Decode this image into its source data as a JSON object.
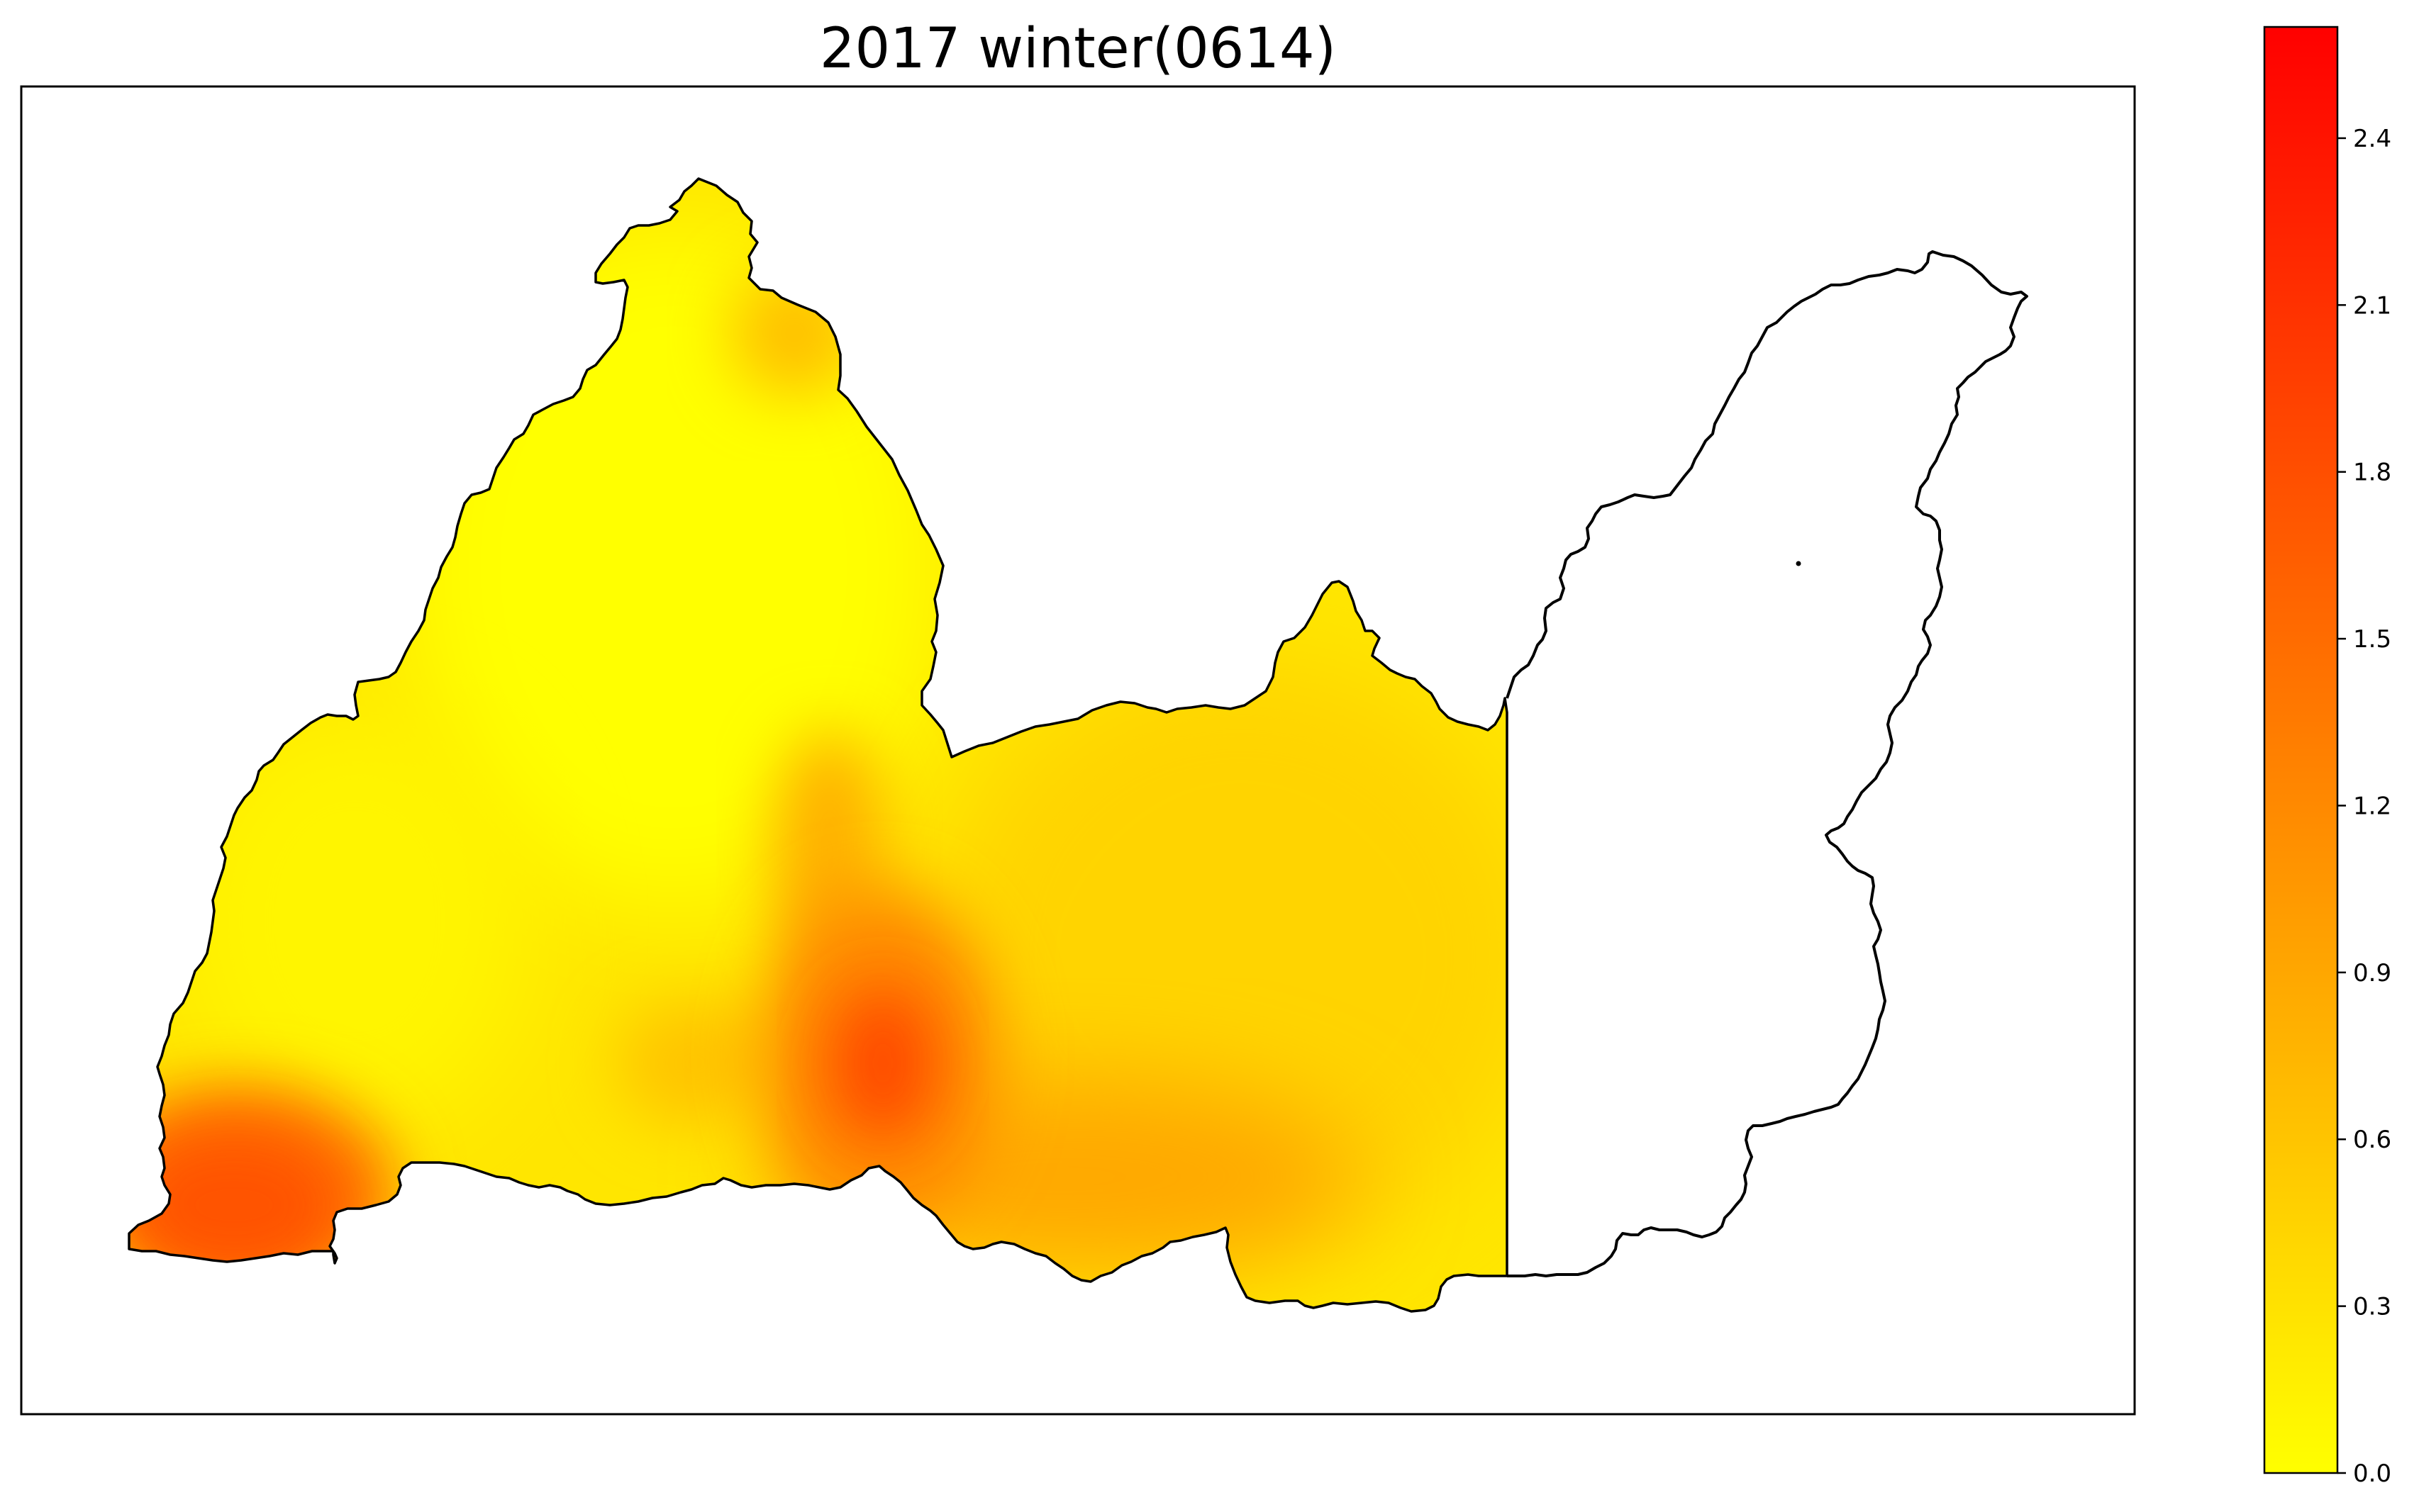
{
  "title": "2017 winter(0614)",
  "colorbar": {
    "min": 0.0,
    "max": 2.6,
    "colormap": "autumn_r",
    "color_low": "#ffff00",
    "color_high": "#ff0000",
    "ticks": [
      "0.0",
      "0.3",
      "0.6",
      "0.9",
      "1.2",
      "1.5",
      "1.8",
      "2.1",
      "2.4"
    ]
  },
  "hotspots": [
    {
      "value": 1.9,
      "region": "lower-left"
    },
    {
      "value": 1.7,
      "region": "lower-center"
    },
    {
      "value": 1.0,
      "region": "center"
    },
    {
      "value": 0.7,
      "region": "top"
    }
  ]
}
